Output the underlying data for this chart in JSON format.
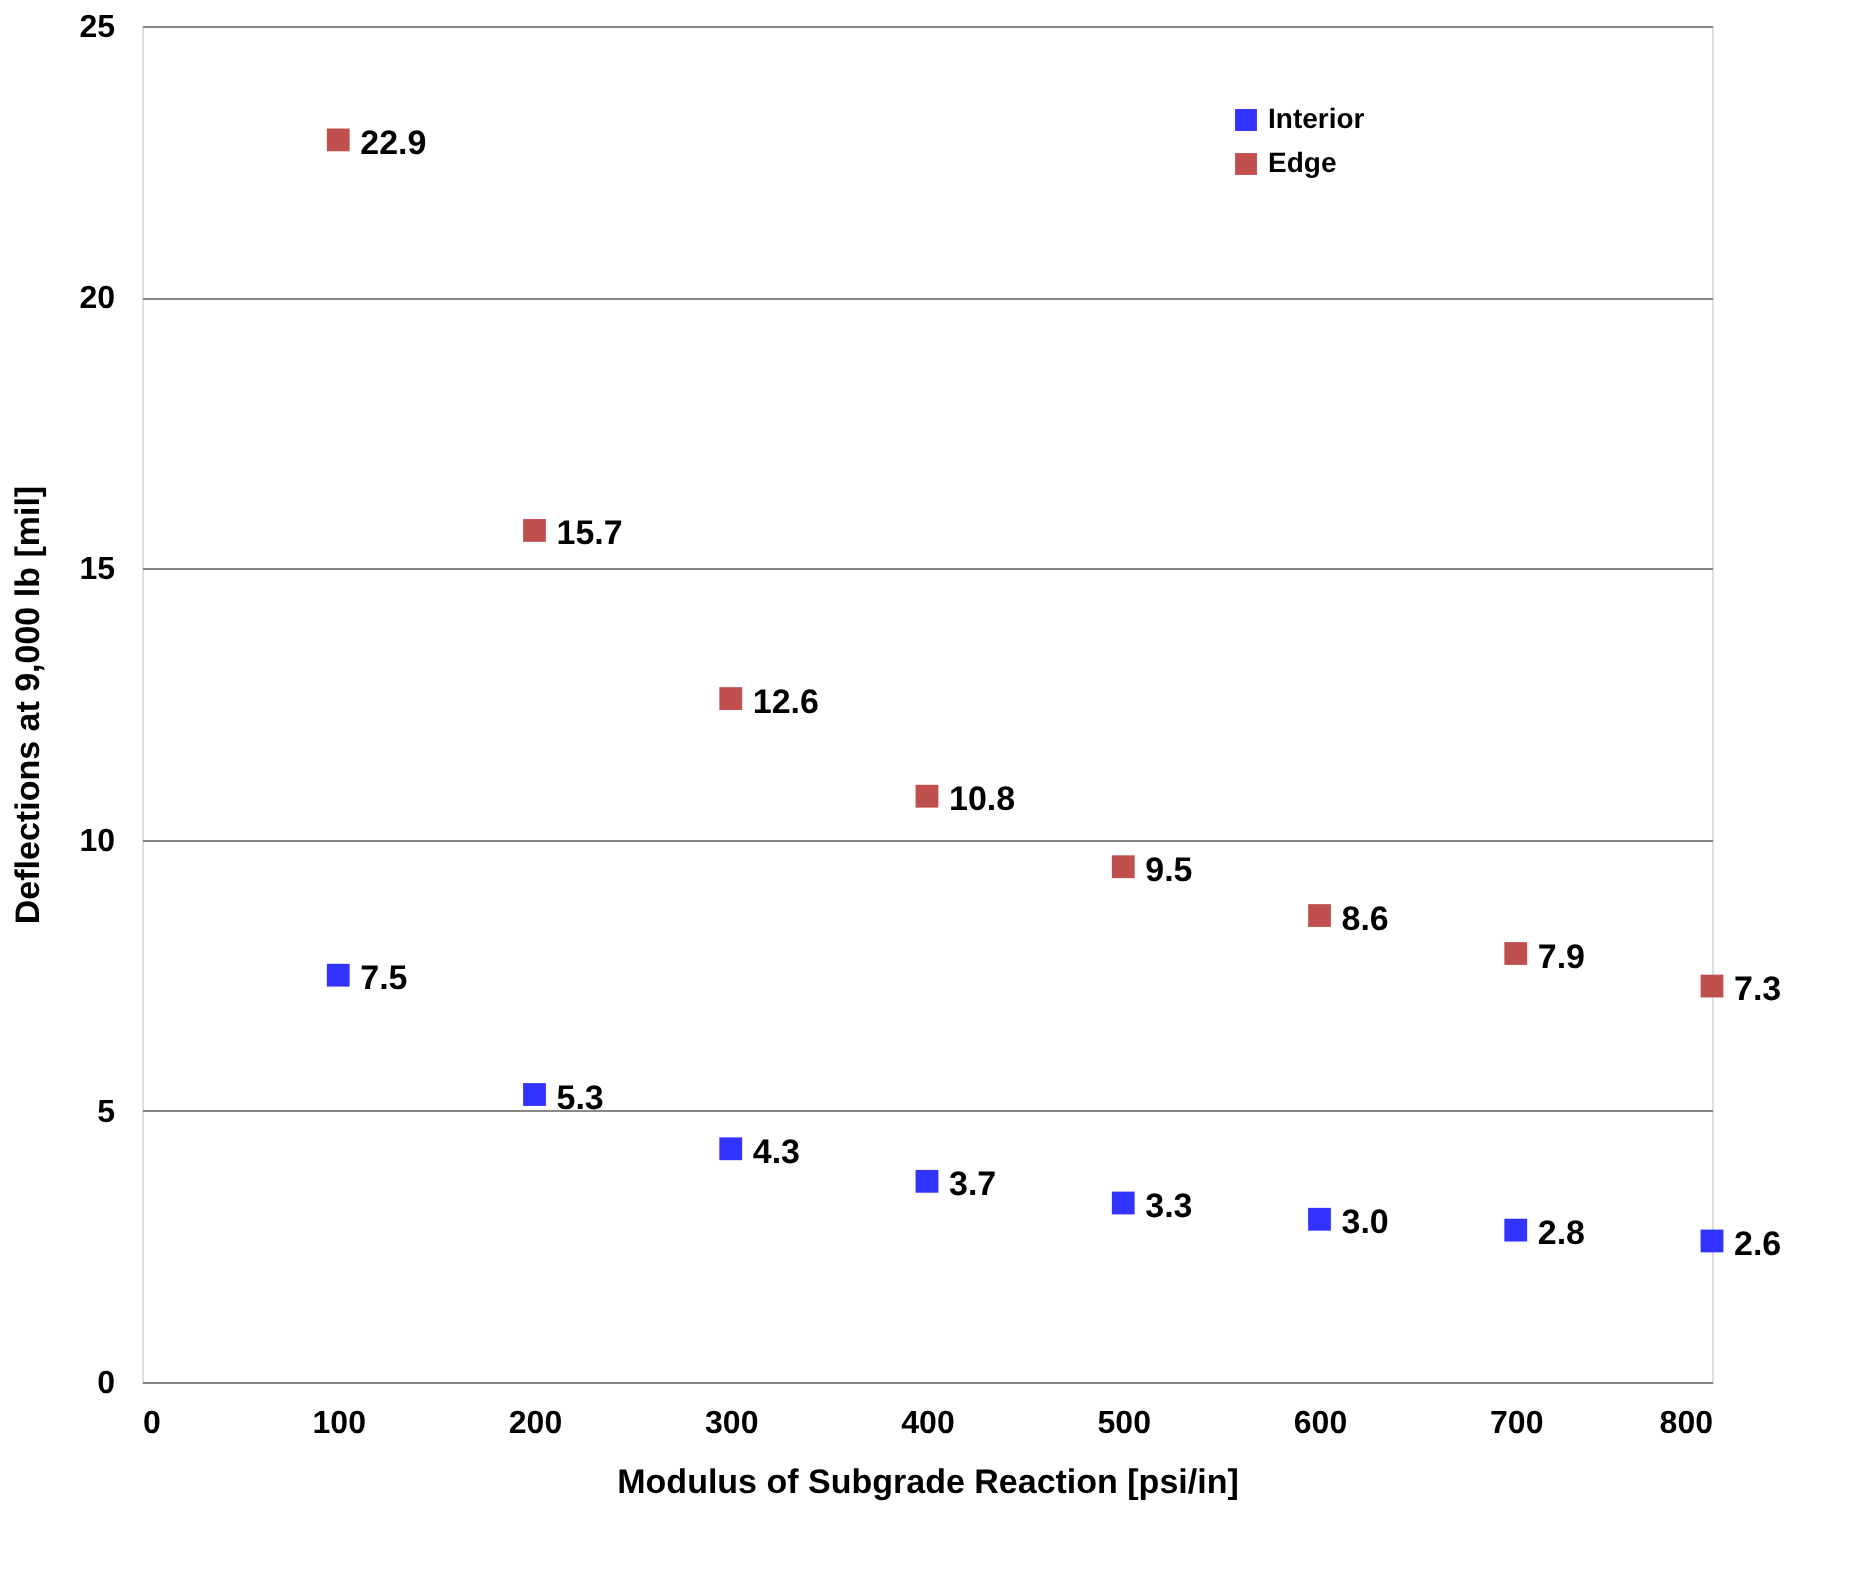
{
  "chart_data": {
    "type": "scatter",
    "xlabel": "Modulus of Subgrade Reaction [psi/in]",
    "ylabel": "Deflections at 9,000 lb [mil]",
    "x": [
      100,
      200,
      300,
      400,
      500,
      600,
      700,
      800
    ],
    "series": [
      {
        "name": "Interior",
        "color": "#3333ff",
        "values": [
          7.5,
          5.3,
          4.3,
          3.7,
          3.3,
          3.0,
          2.8,
          2.6
        ],
        "value_labels": [
          "7.5",
          "5.3",
          "4.3",
          "3.7",
          "3.3",
          "3.0",
          "2.8",
          "2.6"
        ]
      },
      {
        "name": "Edge",
        "color": "#c0504d",
        "values": [
          22.9,
          15.7,
          12.6,
          10.8,
          9.5,
          8.6,
          7.9,
          7.3
        ],
        "value_labels": [
          "22.9",
          "15.7",
          "12.6",
          "10.8",
          "9.5",
          "8.6",
          "7.9",
          "7.3"
        ]
      }
    ],
    "xlim": [
      0,
      800
    ],
    "xticks": [
      0,
      100,
      200,
      300,
      400,
      500,
      600,
      700,
      800
    ],
    "ylim": [
      0,
      25
    ],
    "yticks": [
      0,
      5,
      10,
      15,
      20,
      25
    ],
    "grid": "y",
    "legend": "top right",
    "marker": "square"
  }
}
